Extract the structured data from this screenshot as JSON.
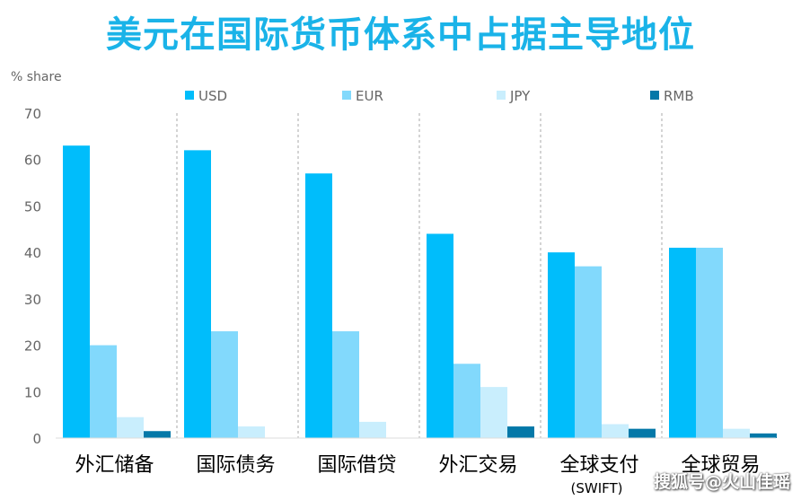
{
  "title": "美元在国际货币体系中占据主导地位",
  "watermark": "搜狐号@火山佳瑶",
  "chart_data": {
    "type": "bar",
    "ylabel": "% share",
    "ylim": [
      0,
      70
    ],
    "yticks": [
      0,
      10,
      20,
      30,
      40,
      50,
      60,
      70
    ],
    "legend_position": "top",
    "categories": [
      {
        "label": "外汇储备",
        "sublabel": ""
      },
      {
        "label": "国际债务",
        "sublabel": ""
      },
      {
        "label": "国际借贷",
        "sublabel": ""
      },
      {
        "label": "外汇交易",
        "sublabel": ""
      },
      {
        "label": "全球支付",
        "sublabel": "(SWIFT)"
      },
      {
        "label": "全球贸易",
        "sublabel": ""
      }
    ],
    "series": [
      {
        "name": "USD",
        "color": "#00bdfb",
        "values": [
          63,
          62,
          57,
          44,
          40,
          41
        ]
      },
      {
        "name": "EUR",
        "color": "#82d9fc",
        "values": [
          20,
          23,
          23,
          16,
          37,
          41
        ]
      },
      {
        "name": "JPY",
        "color": "#c9eefd",
        "values": [
          4.5,
          2.5,
          3.5,
          11,
          3,
          2
        ]
      },
      {
        "name": "RMB",
        "color": "#0478a8",
        "values": [
          1.5,
          0,
          0,
          2.5,
          2,
          1
        ]
      }
    ],
    "grid": false
  }
}
